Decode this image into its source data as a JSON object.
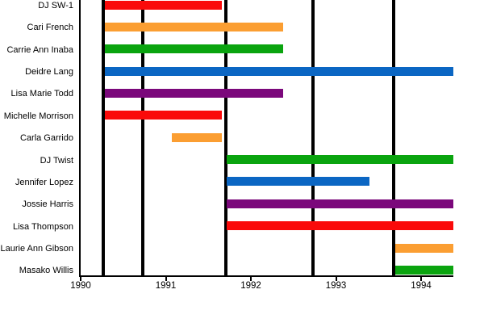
{
  "chart_data": {
    "type": "bar",
    "subtype": "horizontal-gantt-timeline",
    "title": "",
    "xlabel": "",
    "ylabel": "",
    "xlim": [
      1990.0,
      1994.38
    ],
    "x_ticks": [
      1990,
      1991,
      1992,
      1993,
      1994
    ],
    "grid": "off",
    "legend": "none",
    "event_lines": [
      1990.27,
      1990.73,
      1991.71,
      1992.73,
      1993.68
    ],
    "rows": [
      {
        "label": "DJ SW-1",
        "start": 1990.28,
        "end": 1991.66,
        "color": "red"
      },
      {
        "label": "Cari French",
        "start": 1990.28,
        "end": 1992.38,
        "color": "orange"
      },
      {
        "label": "Carrie Ann Inaba",
        "start": 1990.28,
        "end": 1992.38,
        "color": "green"
      },
      {
        "label": "Deidre Lang",
        "start": 1990.28,
        "end": 1994.38,
        "color": "blue"
      },
      {
        "label": "Lisa Marie Todd",
        "start": 1990.28,
        "end": 1992.38,
        "color": "purple"
      },
      {
        "label": "Michelle Morrison",
        "start": 1990.28,
        "end": 1991.66,
        "color": "red"
      },
      {
        "label": "Carla Garrido",
        "start": 1991.07,
        "end": 1991.66,
        "color": "orange"
      },
      {
        "label": "DJ Twist",
        "start": 1991.72,
        "end": 1994.38,
        "color": "green"
      },
      {
        "label": "Jennifer Lopez",
        "start": 1991.72,
        "end": 1993.39,
        "color": "blue"
      },
      {
        "label": "Jossie Harris",
        "start": 1991.72,
        "end": 1994.38,
        "color": "purple"
      },
      {
        "label": "Lisa Thompson",
        "start": 1991.72,
        "end": 1994.38,
        "color": "red"
      },
      {
        "label": "Laurie Ann Gibson",
        "start": 1993.7,
        "end": 1994.38,
        "color": "orange"
      },
      {
        "label": "Masako Willis",
        "start": 1993.7,
        "end": 1994.38,
        "color": "green"
      }
    ],
    "palette": {
      "red": "#fa0a0a",
      "orange": "#fb9e32",
      "green": "#0aa40f",
      "blue": "#0b66c3",
      "purple": "#7b087b"
    },
    "axis_color": "#000000",
    "background_color": "#ffffff"
  }
}
